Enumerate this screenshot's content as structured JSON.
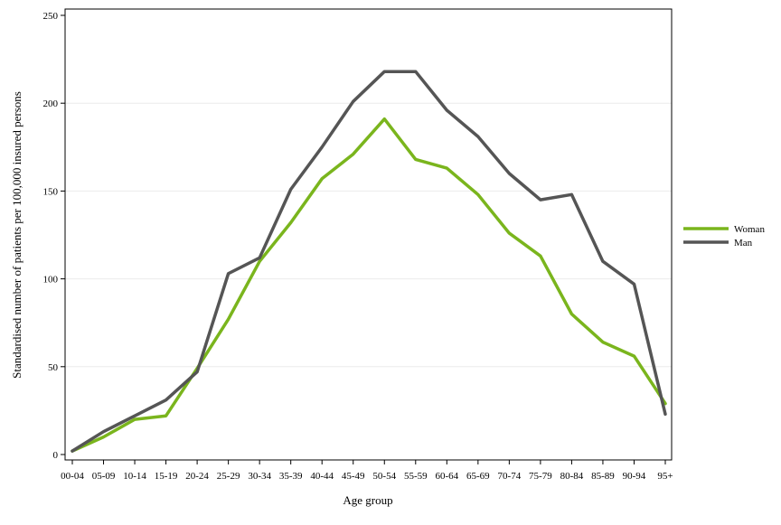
{
  "chart_data": {
    "type": "line",
    "xlabel": "Age group",
    "ylabel": "Standardised number of patients per 100,000 insured persons",
    "categories": [
      "00-04",
      "05-09",
      "10-14",
      "15-19",
      "20-24",
      "25-29",
      "30-34",
      "35-39",
      "40-44",
      "45-49",
      "50-54",
      "55-59",
      "60-64",
      "65-69",
      "70-74",
      "75-79",
      "80-84",
      "85-89",
      "90-94",
      "95+"
    ],
    "ylim": [
      0,
      250
    ],
    "yticks": [
      "0",
      "50",
      "100",
      "150",
      "200",
      "250"
    ],
    "grid": "horizontal",
    "legend_position": "right",
    "series": [
      {
        "name": "Woman",
        "color": "#7ab51d",
        "values": [
          2,
          10,
          20,
          22,
          49,
          77,
          110,
          132,
          157,
          171,
          191,
          168,
          163,
          148,
          126,
          113,
          80,
          64,
          56,
          29
        ]
      },
      {
        "name": "Man",
        "color": "#555555",
        "values": [
          2,
          13,
          22,
          31,
          47,
          103,
          112,
          151,
          175,
          201,
          218,
          218,
          196,
          181,
          160,
          145,
          148,
          110,
          97,
          23
        ]
      }
    ]
  }
}
